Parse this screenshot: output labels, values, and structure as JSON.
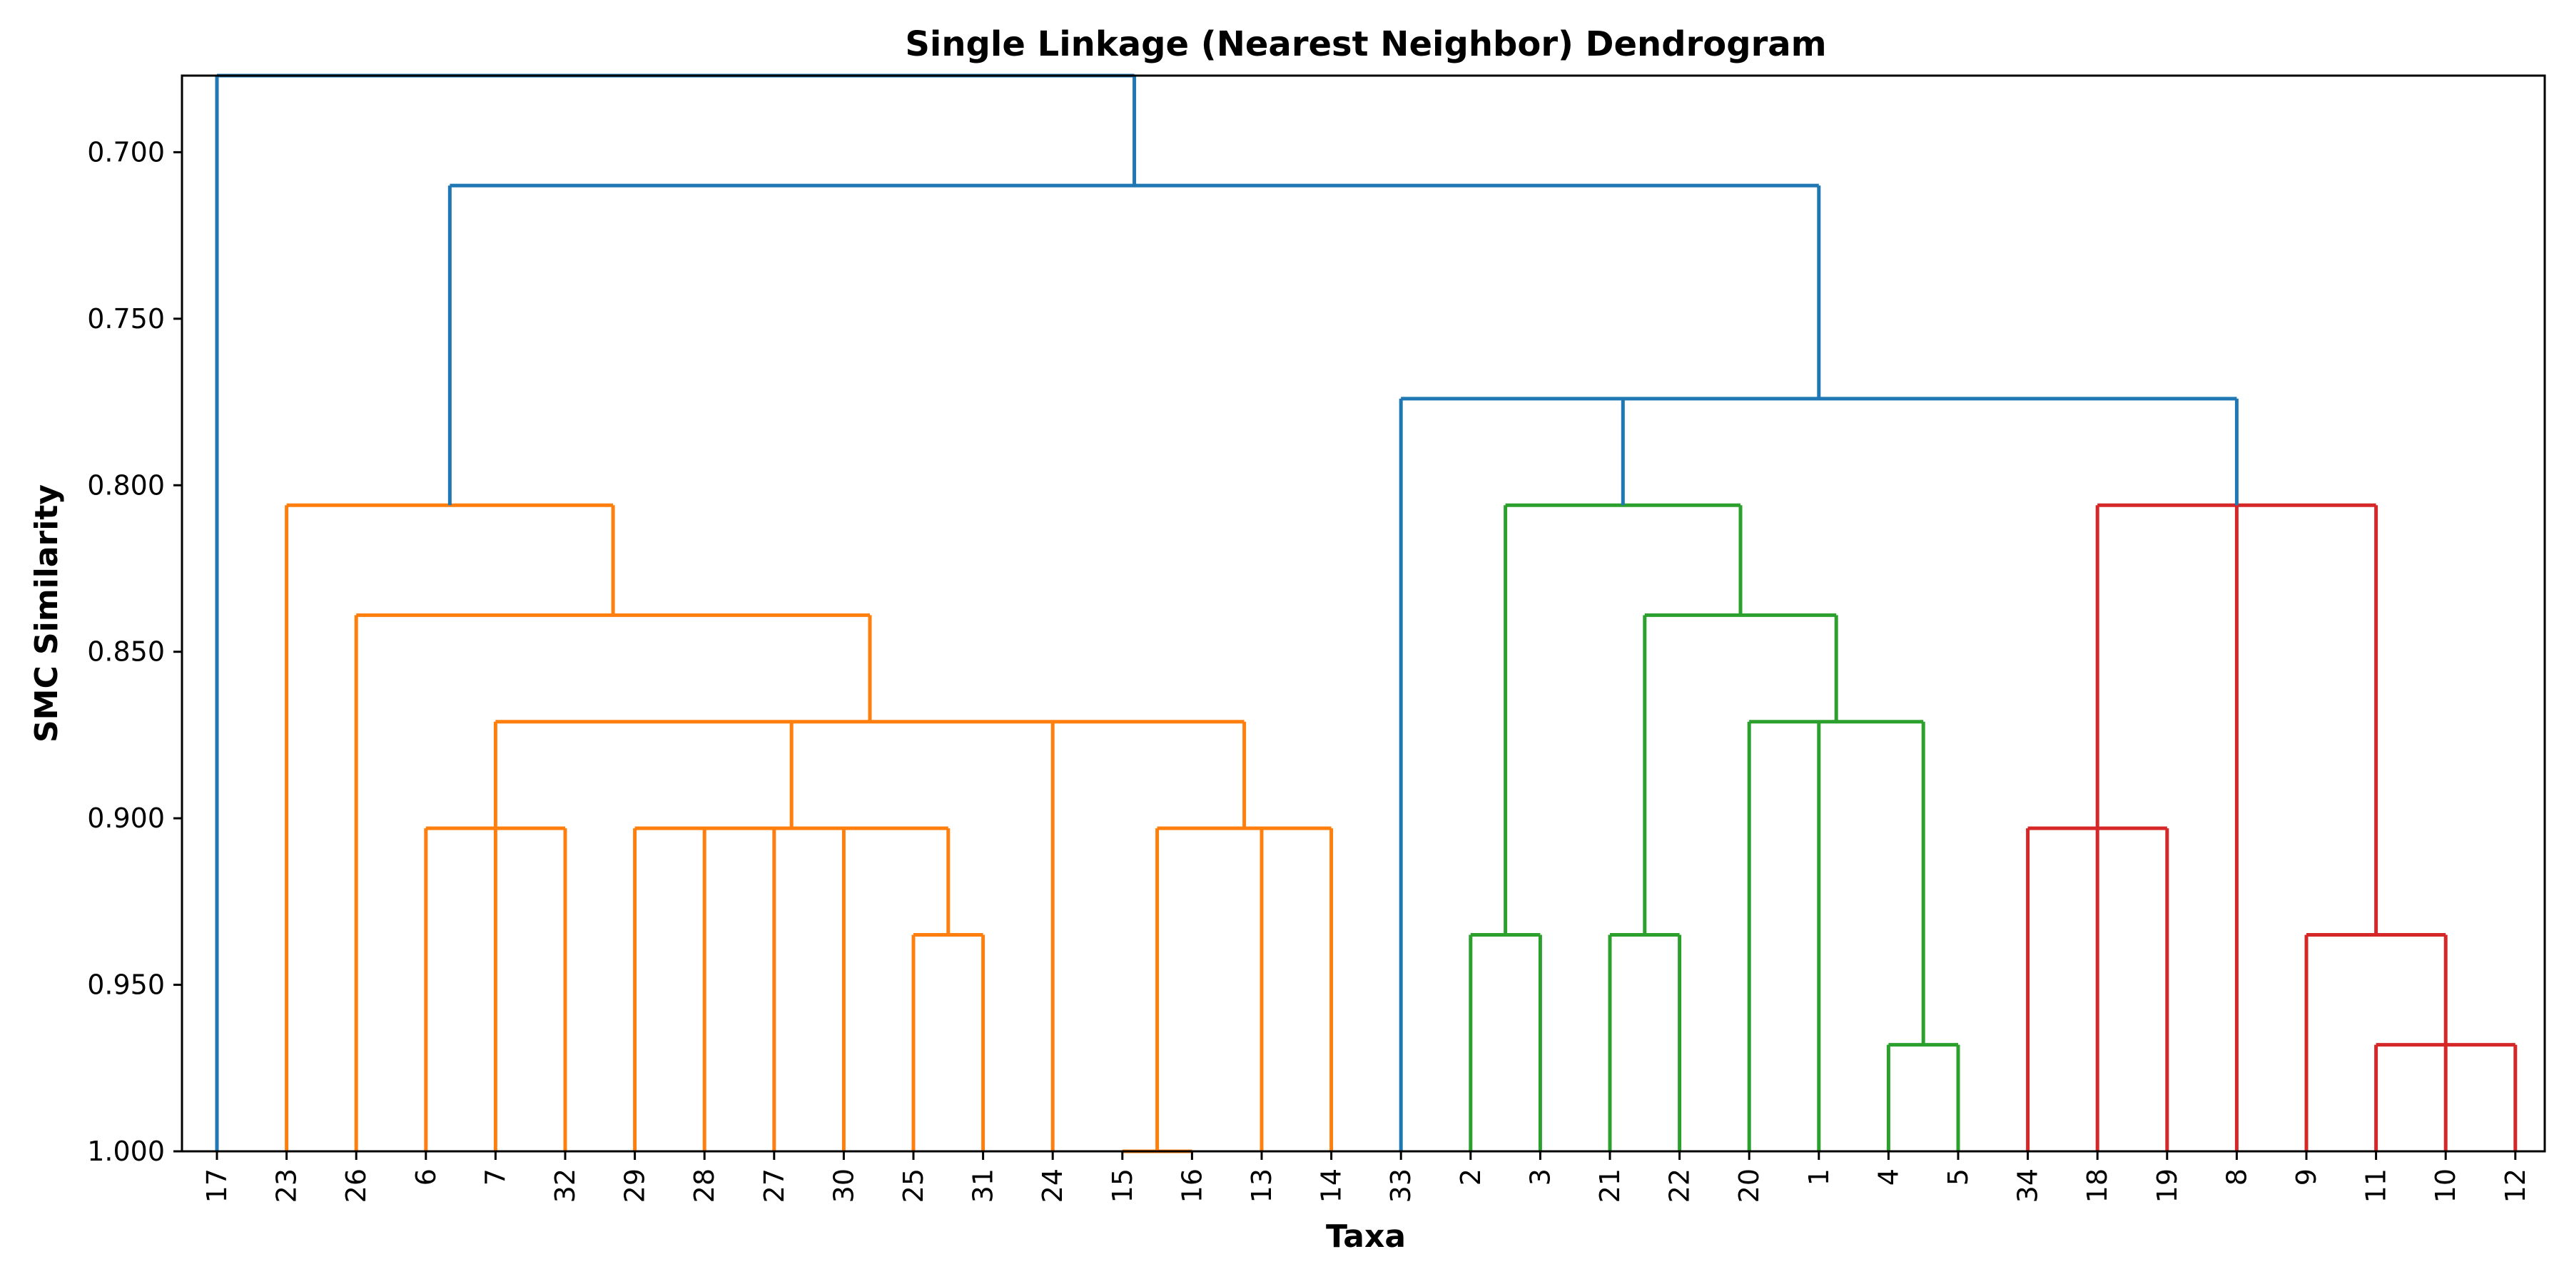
{
  "chart_data": {
    "type": "dendrogram",
    "title": "Single Linkage (Nearest Neighbor) Dendrogram",
    "xlabel": "Taxa",
    "ylabel": "SMC Similarity",
    "ylim": [
      0.677,
      1.0
    ],
    "y_inverted": true,
    "yticks": [
      "0.700",
      "0.750",
      "0.800",
      "0.850",
      "0.900",
      "0.950",
      "1.000"
    ],
    "grid": false,
    "leaves": [
      "17",
      "23",
      "26",
      "6",
      "7",
      "32",
      "29",
      "28",
      "27",
      "30",
      "25",
      "31",
      "24",
      "15",
      "16",
      "13",
      "14",
      "33",
      "2",
      "3",
      "21",
      "22",
      "20",
      "1",
      "4",
      "5",
      "34",
      "18",
      "19",
      "8",
      "9",
      "11",
      "10",
      "12"
    ],
    "colors": {
      "C0": "#1f77b4",
      "C1": "#ff7f0e",
      "C2": "#2ca02c",
      "C3": "#d62728"
    },
    "links": [
      {
        "x": [
          25,
          31
        ],
        "height": 0.935,
        "color": "C1"
      },
      {
        "x": [
          15,
          16
        ],
        "height": 1.0,
        "color": "C1"
      },
      {
        "x": [
          6,
          7,
          32
        ],
        "height": 0.903,
        "color": "C1"
      },
      {
        "x": [
          29,
          28,
          27,
          30,
          "25-31"
        ],
        "height": 0.903,
        "color": "C1"
      },
      {
        "x": [
          "15-16",
          13,
          14
        ],
        "height": 0.903,
        "color": "C1"
      },
      {
        "x": [
          "6-32",
          "29-31",
          24,
          "15-14"
        ],
        "height": 0.871,
        "color": "C1"
      },
      {
        "x": [
          26,
          "6-14"
        ],
        "height": 0.839,
        "color": "C1"
      },
      {
        "x": [
          23,
          "26-14"
        ],
        "height": 0.806,
        "color": "C1"
      },
      {
        "x": [
          2,
          3
        ],
        "height": 0.935,
        "color": "C2"
      },
      {
        "x": [
          21,
          22
        ],
        "height": 0.935,
        "color": "C2"
      },
      {
        "x": [
          4,
          5
        ],
        "height": 0.968,
        "color": "C2"
      },
      {
        "x": [
          20,
          1,
          "4-5"
        ],
        "height": 0.871,
        "color": "C2"
      },
      {
        "x": [
          "21-22",
          "20-5"
        ],
        "height": 0.839,
        "color": "C2"
      },
      {
        "x": [
          "2-3",
          "21-5"
        ],
        "height": 0.806,
        "color": "C2"
      },
      {
        "x": [
          34,
          18,
          19
        ],
        "height": 0.903,
        "color": "C3"
      },
      {
        "x": [
          11,
          10,
          12
        ],
        "height": 0.968,
        "color": "C3"
      },
      {
        "x": [
          9,
          "11-12"
        ],
        "height": 0.935,
        "color": "C3"
      },
      {
        "x": [
          "34-19",
          8,
          "9-12"
        ],
        "height": 0.806,
        "color": "C3"
      },
      {
        "x": [
          33,
          "2-5",
          "34-12"
        ],
        "height": 0.774,
        "color": "C0"
      },
      {
        "x": [
          "23-14",
          "33-12"
        ],
        "height": 0.71,
        "color": "C0"
      },
      {
        "x": [
          17,
          "23-12"
        ],
        "height": 0.677,
        "color": "C0"
      }
    ]
  }
}
